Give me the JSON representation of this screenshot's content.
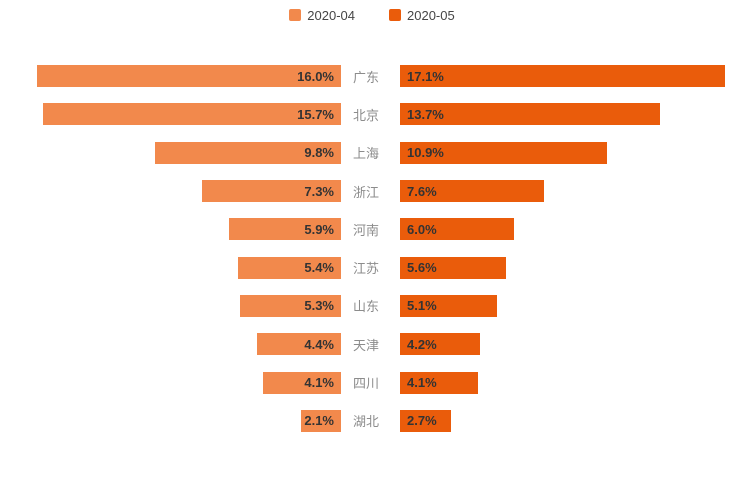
{
  "legend": {
    "items": [
      {
        "label": "2020-04",
        "color": "#f2894c"
      },
      {
        "label": "2020-05",
        "color": "#ea5c0b"
      }
    ]
  },
  "chart_data": {
    "type": "bar",
    "subtype": "bidirectional-horizontal-tornado",
    "title": "",
    "categories": [
      "广东",
      "北京",
      "上海",
      "浙江",
      "河南",
      "江苏",
      "山东",
      "天津",
      "四川",
      "湖北"
    ],
    "series": [
      {
        "name": "2020-04",
        "color": "#f2894c",
        "side": "left",
        "values": [
          16.0,
          15.7,
          9.8,
          7.3,
          5.9,
          5.4,
          5.3,
          4.4,
          4.1,
          2.1
        ]
      },
      {
        "name": "2020-05",
        "color": "#ea5c0b",
        "side": "right",
        "values": [
          17.1,
          13.7,
          10.9,
          7.6,
          6.0,
          5.6,
          5.1,
          4.2,
          4.1,
          2.7
        ]
      }
    ],
    "value_suffix": "%",
    "value_decimals": 1,
    "axis_max": 17.1,
    "legend_position": "top-center",
    "value_labels": "inside-bar-end",
    "grid": "off",
    "category_label_color": "#8c8c8c",
    "value_label_color": "#333333",
    "background_color": "#ffffff"
  }
}
